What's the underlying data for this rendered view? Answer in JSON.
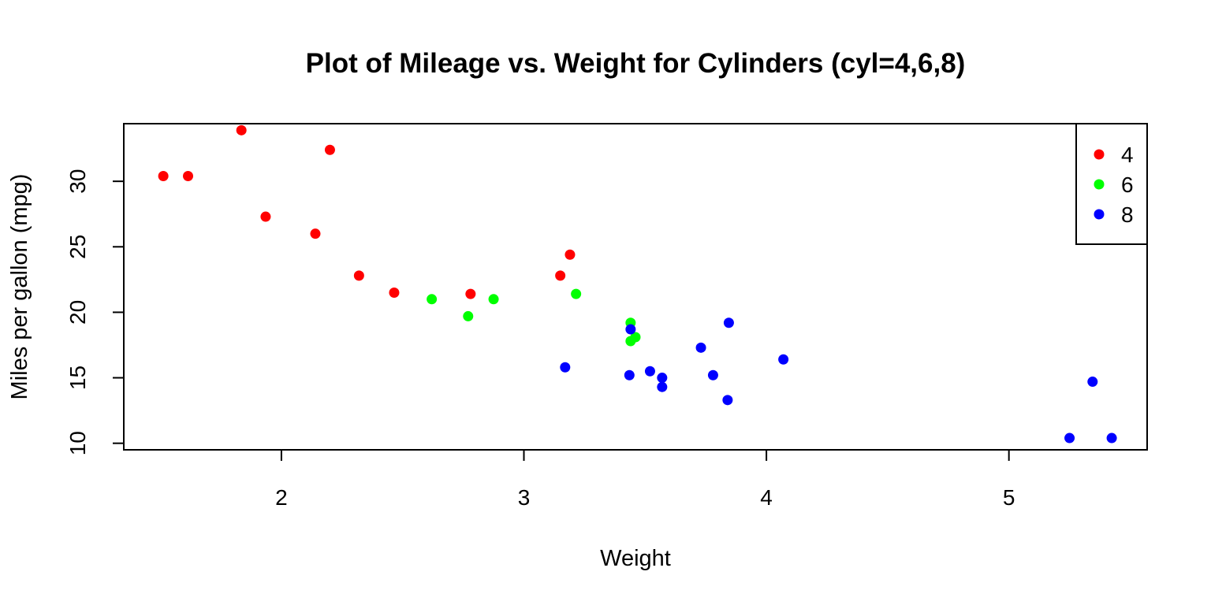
{
  "chart_data": {
    "type": "scatter",
    "title": "Plot of Mileage vs. Weight for Cylinders (cyl=4,6,8)",
    "xlabel": "Weight",
    "ylabel": "Miles per gallon (mpg)",
    "xlim": [
      1.35,
      5.57
    ],
    "ylim": [
      9.5,
      34.4
    ],
    "xticks": [
      2,
      3,
      4,
      5
    ],
    "yticks": [
      10,
      15,
      20,
      25,
      30
    ],
    "grid": false,
    "legend": "top-right",
    "series": [
      {
        "name": "4",
        "color": "#ff0000",
        "points": [
          {
            "x": 1.513,
            "y": 30.4
          },
          {
            "x": 1.615,
            "y": 30.4
          },
          {
            "x": 1.835,
            "y": 33.9
          },
          {
            "x": 1.935,
            "y": 27.3
          },
          {
            "x": 2.14,
            "y": 26.0
          },
          {
            "x": 2.2,
            "y": 32.4
          },
          {
            "x": 2.32,
            "y": 22.8
          },
          {
            "x": 2.465,
            "y": 21.5
          },
          {
            "x": 2.78,
            "y": 21.4
          },
          {
            "x": 3.15,
            "y": 22.8
          },
          {
            "x": 3.19,
            "y": 24.4
          }
        ]
      },
      {
        "name": "6",
        "color": "#00ff00",
        "points": [
          {
            "x": 2.62,
            "y": 21.0
          },
          {
            "x": 2.77,
            "y": 19.7
          },
          {
            "x": 2.875,
            "y": 21.0
          },
          {
            "x": 3.215,
            "y": 21.4
          },
          {
            "x": 3.44,
            "y": 19.2
          },
          {
            "x": 3.44,
            "y": 17.8
          },
          {
            "x": 3.46,
            "y": 18.1
          }
        ]
      },
      {
        "name": "8",
        "color": "#0000ff",
        "points": [
          {
            "x": 3.17,
            "y": 15.8
          },
          {
            "x": 3.435,
            "y": 15.2
          },
          {
            "x": 3.44,
            "y": 18.7
          },
          {
            "x": 3.52,
            "y": 15.5
          },
          {
            "x": 3.57,
            "y": 15.0
          },
          {
            "x": 3.57,
            "y": 14.3
          },
          {
            "x": 3.73,
            "y": 17.3
          },
          {
            "x": 3.78,
            "y": 15.2
          },
          {
            "x": 3.84,
            "y": 13.3
          },
          {
            "x": 3.845,
            "y": 19.2
          },
          {
            "x": 4.07,
            "y": 16.4
          },
          {
            "x": 5.25,
            "y": 10.4
          },
          {
            "x": 5.345,
            "y": 14.7
          },
          {
            "x": 5.424,
            "y": 10.4
          }
        ]
      }
    ]
  }
}
